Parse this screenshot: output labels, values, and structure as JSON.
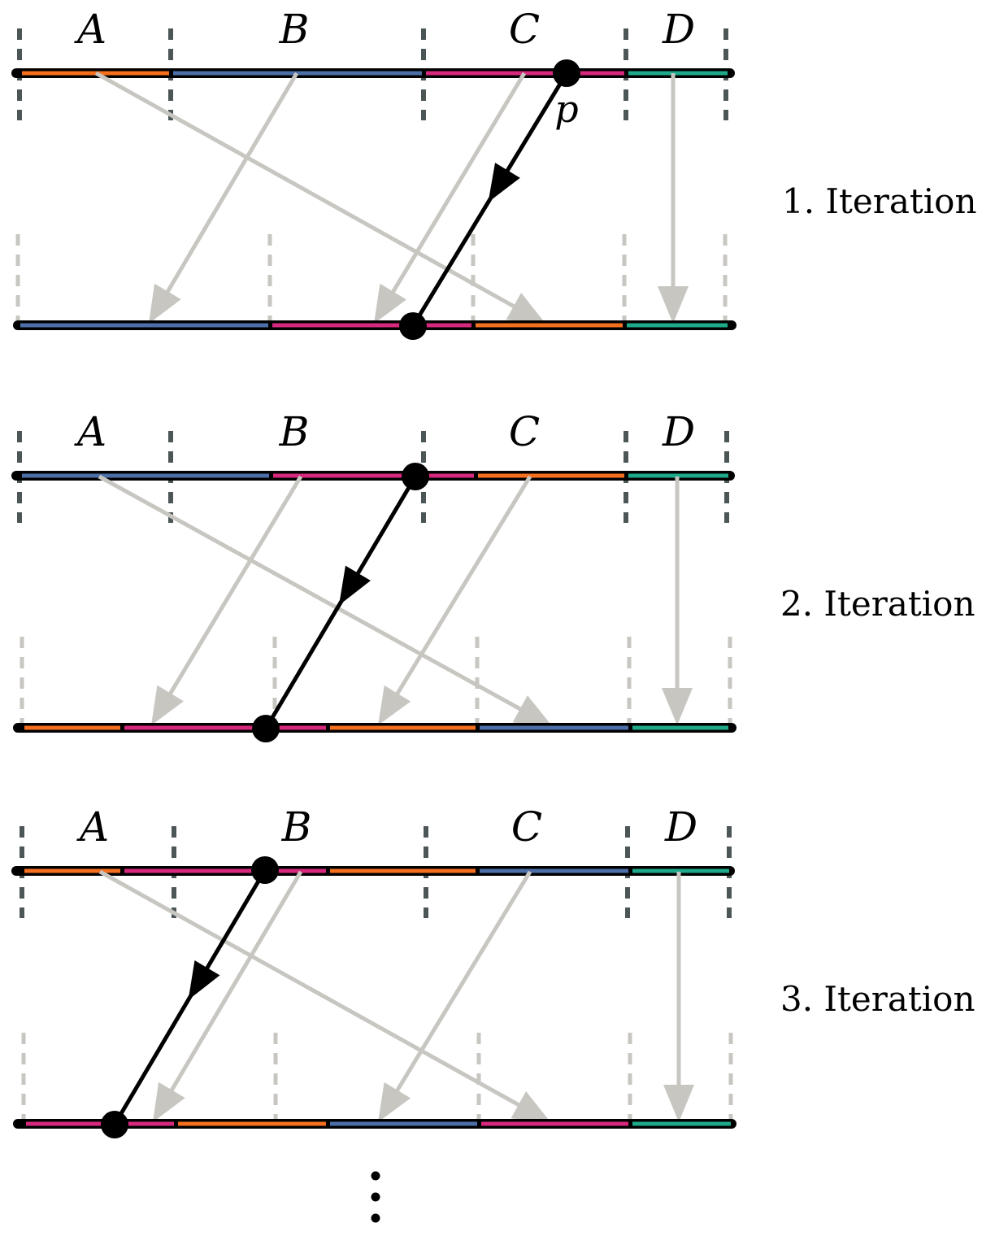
{
  "colors": {
    "A": "#f4701f",
    "B": "#4c6fa8",
    "C": "#d6297d",
    "D": "#1eaa8a",
    "axis": "#000000",
    "gray_arrow": "#c8c6c1",
    "top_tick": "#4d5656",
    "bottom_tick": "#c8c6c1",
    "pointer": "#000000"
  },
  "pointer_label": "p",
  "continuation": "⋮",
  "iterations": [
    {
      "label": "1. Iteration",
      "segment_labels": [
        "A",
        "B",
        "C",
        "D"
      ],
      "top_colors": [
        "A",
        "B",
        "C",
        "D"
      ],
      "bottom_colors": [
        "B",
        "C",
        "A",
        "D"
      ],
      "show_pointer_label": true
    },
    {
      "label": "2. Iteration",
      "segment_labels": [
        "A",
        "B",
        "C",
        "D"
      ],
      "top_colors": [
        "B",
        "C",
        "A",
        "D"
      ],
      "bottom_colors": [
        "C",
        "A",
        "B",
        "D"
      ],
      "show_pointer_label": false
    },
    {
      "label": "3. Iteration",
      "segment_labels": [
        "A",
        "B",
        "C",
        "D"
      ],
      "top_colors": [
        "C",
        "A",
        "B",
        "D"
      ],
      "bottom_colors": [
        "A",
        "B",
        "C",
        "D"
      ],
      "show_pointer_label": false
    }
  ]
}
